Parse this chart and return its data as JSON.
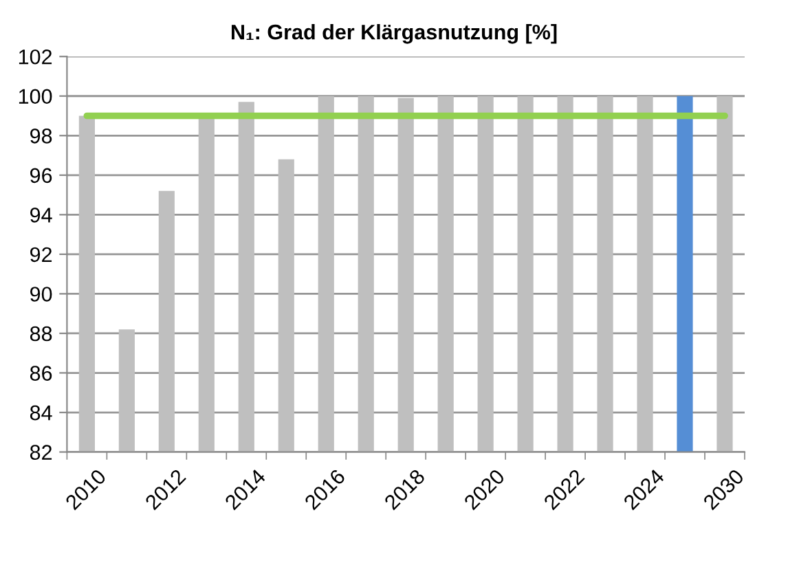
{
  "chart_data": {
    "type": "bar",
    "title": "N₁: Grad der Klärgasnutzung [%]",
    "categories": [
      "2010",
      null,
      "2012",
      null,
      "2014",
      null,
      "2016",
      null,
      "2018",
      null,
      "2020",
      null,
      "2022",
      null,
      "2024",
      null,
      "2030"
    ],
    "values": [
      99.0,
      88.2,
      95.2,
      99.0,
      99.7,
      96.8,
      100,
      100,
      99.9,
      100,
      100,
      100,
      100,
      100,
      100,
      100,
      100
    ],
    "colors": [
      "#bfbfbf",
      "#bfbfbf",
      "#bfbfbf",
      "#bfbfbf",
      "#bfbfbf",
      "#bfbfbf",
      "#bfbfbf",
      "#bfbfbf",
      "#bfbfbf",
      "#bfbfbf",
      "#bfbfbf",
      "#bfbfbf",
      "#bfbfbf",
      "#bfbfbf",
      "#bfbfbf",
      "#558ed5",
      "#bfbfbf"
    ],
    "ylim": [
      82,
      102
    ],
    "yticks": [
      82,
      84,
      86,
      88,
      90,
      92,
      94,
      96,
      98,
      100,
      102
    ],
    "grid": "y",
    "ref_lines": [
      {
        "axis": "y",
        "value": 99,
        "color": "#92d050"
      }
    ]
  }
}
